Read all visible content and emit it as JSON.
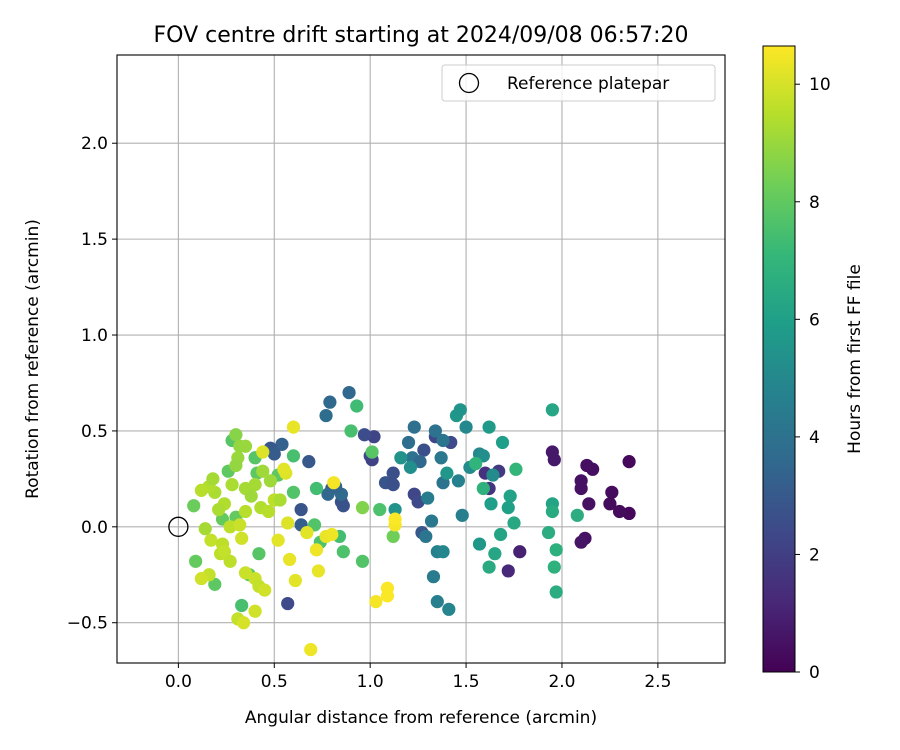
{
  "chart_data": {
    "type": "scatter",
    "title": "FOV centre drift starting at 2024/09/08 06:57:20",
    "xlabel": "Angular distance from reference (arcmin)",
    "ylabel": "Rotation from reference (arcmin)",
    "xlim": [
      -0.32,
      2.85
    ],
    "ylim": [
      -0.71,
      2.46
    ],
    "xticks": [
      0.0,
      0.5,
      1.0,
      1.5,
      2.0,
      2.5
    ],
    "xtick_labels": [
      "0.0",
      "0.5",
      "1.0",
      "1.5",
      "2.0",
      "2.5"
    ],
    "yticks": [
      -0.5,
      0.0,
      0.5,
      1.0,
      1.5,
      2.0
    ],
    "ytick_labels": [
      "−0.5",
      "0.0",
      "0.5",
      "1.0",
      "1.5",
      "2.0"
    ],
    "grid": true,
    "legend": {
      "placement": "upper right",
      "label": "Reference platepar"
    },
    "reference_point": {
      "x": 0.0,
      "y": 0.0
    },
    "colorbar": {
      "label": "Hours from first FF file",
      "range": [
        0,
        10.65
      ],
      "ticks": [
        0,
        2,
        4,
        6,
        8,
        10
      ],
      "tick_labels": [
        "0",
        "2",
        "4",
        "6",
        "8",
        "10"
      ],
      "colormap": "viridis"
    },
    "colors": {
      "grid": "#b0b0b0",
      "axes": "#000000",
      "viridis_stops": [
        "#440154",
        "#482878",
        "#3e4989",
        "#31688e",
        "#26828e",
        "#1f9e89",
        "#35b779",
        "#6ece58",
        "#b5de2b",
        "#fde725"
      ]
    },
    "points": [
      {
        "x": 2.35,
        "y": 0.34,
        "c": 0.2
      },
      {
        "x": 2.35,
        "y": 0.07,
        "c": 0.2
      },
      {
        "x": 2.3,
        "y": 0.08,
        "c": 0.3
      },
      {
        "x": 2.26,
        "y": 0.18,
        "c": 0.3
      },
      {
        "x": 2.25,
        "y": 0.12,
        "c": 0.3
      },
      {
        "x": 2.16,
        "y": 0.3,
        "c": 0.4
      },
      {
        "x": 2.13,
        "y": 0.32,
        "c": 0.4
      },
      {
        "x": 2.14,
        "y": 0.12,
        "c": 0.5
      },
      {
        "x": 2.1,
        "y": 0.24,
        "c": 0.5
      },
      {
        "x": 2.1,
        "y": 0.2,
        "c": 0.5
      },
      {
        "x": 2.12,
        "y": -0.06,
        "c": 0.5
      },
      {
        "x": 2.1,
        "y": -0.08,
        "c": 0.6
      },
      {
        "x": 1.95,
        "y": 0.39,
        "c": 0.7
      },
      {
        "x": 1.96,
        "y": 0.35,
        "c": 0.7
      },
      {
        "x": 1.78,
        "y": -0.13,
        "c": 1.0
      },
      {
        "x": 1.72,
        "y": -0.23,
        "c": 1.2
      },
      {
        "x": 1.6,
        "y": 0.28,
        "c": 1.5
      },
      {
        "x": 1.62,
        "y": 0.2,
        "c": 1.6
      },
      {
        "x": 1.67,
        "y": 0.29,
        "c": 1.8
      },
      {
        "x": 1.42,
        "y": 0.44,
        "c": 2.4
      },
      {
        "x": 1.34,
        "y": 0.47,
        "c": 2.3
      },
      {
        "x": 1.28,
        "y": 0.4,
        "c": 2.6
      },
      {
        "x": 1.02,
        "y": 0.47,
        "c": 2.2
      },
      {
        "x": 0.97,
        "y": 0.48,
        "c": 2.5
      },
      {
        "x": 1.0,
        "y": 0.37,
        "c": 2.4
      },
      {
        "x": 1.01,
        "y": 0.35,
        "c": 2.1
      },
      {
        "x": 1.12,
        "y": 0.28,
        "c": 2.6
      },
      {
        "x": 1.08,
        "y": 0.23,
        "c": 2.8
      },
      {
        "x": 1.12,
        "y": 0.22,
        "c": 2.6
      },
      {
        "x": 1.23,
        "y": 0.17,
        "c": 2.3
      },
      {
        "x": 1.25,
        "y": 0.13,
        "c": 2.4
      },
      {
        "x": 1.27,
        "y": -0.03,
        "c": 2.9
      },
      {
        "x": 0.85,
        "y": 0.13,
        "c": 2.6
      },
      {
        "x": 0.86,
        "y": 0.11,
        "c": 2.7
      },
      {
        "x": 0.8,
        "y": 0.2,
        "c": 2.9
      },
      {
        "x": 0.68,
        "y": 0.34,
        "c": 2.9
      },
      {
        "x": 0.64,
        "y": 0.09,
        "c": 2.8
      },
      {
        "x": 0.64,
        "y": 0.01,
        "c": 3.2
      },
      {
        "x": 0.57,
        "y": -0.4,
        "c": 2.4
      },
      {
        "x": 0.54,
        "y": 0.43,
        "c": 3.3
      },
      {
        "x": 0.48,
        "y": 0.41,
        "c": 2.9
      },
      {
        "x": 0.5,
        "y": 0.38,
        "c": 3.1
      },
      {
        "x": 0.89,
        "y": 0.7,
        "c": 3.6
      },
      {
        "x": 0.79,
        "y": 0.65,
        "c": 3.6
      },
      {
        "x": 0.77,
        "y": 0.58,
        "c": 3.8
      },
      {
        "x": 0.78,
        "y": 0.17,
        "c": 3.5
      },
      {
        "x": 0.85,
        "y": 0.17,
        "c": 3.7
      },
      {
        "x": 0.82,
        "y": 0.21,
        "c": 3.4
      },
      {
        "x": 1.2,
        "y": 0.44,
        "c": 3.8
      },
      {
        "x": 1.23,
        "y": 0.52,
        "c": 3.9
      },
      {
        "x": 1.22,
        "y": 0.36,
        "c": 4.0
      },
      {
        "x": 1.26,
        "y": 0.34,
        "c": 3.6
      },
      {
        "x": 1.34,
        "y": 0.5,
        "c": 4.0
      },
      {
        "x": 1.38,
        "y": 0.45,
        "c": 4.2
      },
      {
        "x": 1.37,
        "y": 0.36,
        "c": 4.3
      },
      {
        "x": 1.38,
        "y": 0.23,
        "c": 4.1
      },
      {
        "x": 1.3,
        "y": 0.15,
        "c": 4.4
      },
      {
        "x": 1.32,
        "y": 0.03,
        "c": 4.3
      },
      {
        "x": 1.29,
        "y": -0.05,
        "c": 4.2
      },
      {
        "x": 1.33,
        "y": -0.26,
        "c": 4.4
      },
      {
        "x": 1.35,
        "y": -0.39,
        "c": 4.6
      },
      {
        "x": 1.41,
        "y": -0.43,
        "c": 4.8
      },
      {
        "x": 1.35,
        "y": -0.13,
        "c": 4.7
      },
      {
        "x": 1.38,
        "y": -0.13,
        "c": 4.9
      },
      {
        "x": 1.48,
        "y": 0.06,
        "c": 4.6
      },
      {
        "x": 1.46,
        "y": 0.24,
        "c": 4.7
      },
      {
        "x": 1.5,
        "y": 0.52,
        "c": 5.0
      },
      {
        "x": 1.52,
        "y": 0.31,
        "c": 5.1
      },
      {
        "x": 1.57,
        "y": 0.38,
        "c": 5.0
      },
      {
        "x": 1.59,
        "y": 0.37,
        "c": 5.3
      },
      {
        "x": 1.64,
        "y": 0.27,
        "c": 5.1
      },
      {
        "x": 1.45,
        "y": 0.58,
        "c": 5.6
      },
      {
        "x": 1.47,
        "y": 0.61,
        "c": 5.5
      },
      {
        "x": 1.4,
        "y": 0.28,
        "c": 5.6
      },
      {
        "x": 1.21,
        "y": 0.31,
        "c": 5.3
      },
      {
        "x": 1.16,
        "y": 0.36,
        "c": 5.4
      },
      {
        "x": 1.13,
        "y": 0.09,
        "c": 5.4
      },
      {
        "x": 1.57,
        "y": -0.09,
        "c": 5.6
      },
      {
        "x": 1.62,
        "y": 0.52,
        "c": 5.8
      },
      {
        "x": 1.69,
        "y": 0.44,
        "c": 5.9
      },
      {
        "x": 1.63,
        "y": 0.12,
        "c": 5.9
      },
      {
        "x": 1.73,
        "y": 0.16,
        "c": 6.1
      },
      {
        "x": 1.72,
        "y": 0.1,
        "c": 6.0
      },
      {
        "x": 1.68,
        "y": -0.04,
        "c": 6.2
      },
      {
        "x": 1.65,
        "y": -0.14,
        "c": 6.3
      },
      {
        "x": 1.62,
        "y": -0.21,
        "c": 6.5
      },
      {
        "x": 1.75,
        "y": 0.02,
        "c": 6.4
      },
      {
        "x": 1.95,
        "y": 0.61,
        "c": 6.3
      },
      {
        "x": 1.95,
        "y": 0.12,
        "c": 6.2
      },
      {
        "x": 1.95,
        "y": 0.08,
        "c": 6.5
      },
      {
        "x": 1.93,
        "y": -0.03,
        "c": 6.6
      },
      {
        "x": 1.97,
        "y": -0.12,
        "c": 6.7
      },
      {
        "x": 1.96,
        "y": -0.21,
        "c": 6.8
      },
      {
        "x": 1.97,
        "y": -0.34,
        "c": 6.6
      },
      {
        "x": 2.08,
        "y": 0.06,
        "c": 6.6
      },
      {
        "x": 1.76,
        "y": 0.3,
        "c": 7.0
      },
      {
        "x": 1.59,
        "y": 0.2,
        "c": 6.8
      },
      {
        "x": 1.55,
        "y": 0.33,
        "c": 6.9
      },
      {
        "x": 0.93,
        "y": 0.63,
        "c": 7.3
      },
      {
        "x": 0.9,
        "y": 0.5,
        "c": 7.5
      },
      {
        "x": 1.01,
        "y": 0.39,
        "c": 7.8
      },
      {
        "x": 1.05,
        "y": 0.09,
        "c": 7.6
      },
      {
        "x": 0.96,
        "y": -0.18,
        "c": 7.7
      },
      {
        "x": 0.86,
        "y": -0.13,
        "c": 7.6
      },
      {
        "x": 0.84,
        "y": -0.05,
        "c": 7.4
      },
      {
        "x": 0.74,
        "y": -0.08,
        "c": 7.6
      },
      {
        "x": 0.71,
        "y": 0.01,
        "c": 7.7
      },
      {
        "x": 0.72,
        "y": 0.2,
        "c": 7.4
      },
      {
        "x": 0.6,
        "y": 0.37,
        "c": 7.5
      },
      {
        "x": 0.6,
        "y": 0.18,
        "c": 7.7
      },
      {
        "x": 0.52,
        "y": 0.27,
        "c": 7.9
      },
      {
        "x": 0.4,
        "y": 0.36,
        "c": 7.8
      },
      {
        "x": 0.41,
        "y": 0.28,
        "c": 7.9
      },
      {
        "x": 0.42,
        "y": -0.14,
        "c": 7.8
      },
      {
        "x": 0.33,
        "y": -0.41,
        "c": 7.5
      },
      {
        "x": 0.37,
        "y": -0.25,
        "c": 7.9
      },
      {
        "x": 0.26,
        "y": 0.29,
        "c": 8.0
      },
      {
        "x": 0.28,
        "y": 0.45,
        "c": 7.8
      },
      {
        "x": 0.19,
        "y": -0.3,
        "c": 7.9
      },
      {
        "x": 0.09,
        "y": -0.18,
        "c": 8.1
      },
      {
        "x": 0.08,
        "y": 0.11,
        "c": 8.2
      },
      {
        "x": 0.23,
        "y": 0.04,
        "c": 8.1
      },
      {
        "x": 0.3,
        "y": 0.05,
        "c": 8.1
      },
      {
        "x": 1.12,
        "y": -0.05,
        "c": 8.3
      },
      {
        "x": 0.96,
        "y": 0.1,
        "c": 8.6
      },
      {
        "x": 0.3,
        "y": 0.48,
        "c": 8.7
      },
      {
        "x": 0.32,
        "y": 0.42,
        "c": 8.9
      },
      {
        "x": 0.35,
        "y": 0.42,
        "c": 9.0
      },
      {
        "x": 0.31,
        "y": 0.36,
        "c": 9.0
      },
      {
        "x": 0.3,
        "y": 0.32,
        "c": 8.9
      },
      {
        "x": 0.44,
        "y": 0.29,
        "c": 9.1
      },
      {
        "x": 0.48,
        "y": 0.24,
        "c": 9.1
      },
      {
        "x": 0.4,
        "y": 0.22,
        "c": 9.2
      },
      {
        "x": 0.28,
        "y": 0.22,
        "c": 9.3
      },
      {
        "x": 0.35,
        "y": 0.2,
        "c": 9.2
      },
      {
        "x": 0.38,
        "y": 0.16,
        "c": 9.1
      },
      {
        "x": 0.19,
        "y": 0.18,
        "c": 9.3
      },
      {
        "x": 0.16,
        "y": 0.21,
        "c": 9.4
      },
      {
        "x": 0.18,
        "y": 0.25,
        "c": 9.2
      },
      {
        "x": 0.12,
        "y": 0.19,
        "c": 9.5
      },
      {
        "x": 0.24,
        "y": 0.12,
        "c": 9.4
      },
      {
        "x": 0.21,
        "y": 0.09,
        "c": 9.3
      },
      {
        "x": 0.35,
        "y": 0.08,
        "c": 9.5
      },
      {
        "x": 0.43,
        "y": 0.1,
        "c": 9.4
      },
      {
        "x": 0.5,
        "y": 0.14,
        "c": 9.6
      },
      {
        "x": 0.47,
        "y": 0.08,
        "c": 9.5
      },
      {
        "x": 0.53,
        "y": 0.14,
        "c": 9.3
      },
      {
        "x": 0.27,
        "y": 0.0,
        "c": 9.6
      },
      {
        "x": 0.14,
        "y": -0.01,
        "c": 9.2
      },
      {
        "x": 0.17,
        "y": -0.07,
        "c": 9.7
      },
      {
        "x": 0.23,
        "y": -0.09,
        "c": 9.6
      },
      {
        "x": 0.22,
        "y": -0.14,
        "c": 9.6
      },
      {
        "x": 0.24,
        "y": -0.13,
        "c": 9.7
      },
      {
        "x": 0.27,
        "y": -0.18,
        "c": 9.6
      },
      {
        "x": 0.16,
        "y": -0.25,
        "c": 9.7
      },
      {
        "x": 0.12,
        "y": -0.27,
        "c": 9.9
      },
      {
        "x": 0.35,
        "y": -0.24,
        "c": 9.8
      },
      {
        "x": 0.4,
        "y": -0.27,
        "c": 9.8
      },
      {
        "x": 0.42,
        "y": -0.31,
        "c": 9.7
      },
      {
        "x": 0.45,
        "y": -0.33,
        "c": 9.9
      },
      {
        "x": 0.4,
        "y": -0.44,
        "c": 9.9
      },
      {
        "x": 0.31,
        "y": -0.48,
        "c": 9.7
      },
      {
        "x": 0.34,
        "y": -0.5,
        "c": 10.0
      },
      {
        "x": 0.33,
        "y": -0.06,
        "c": 9.9
      },
      {
        "x": 0.32,
        "y": 0.01,
        "c": 9.8
      },
      {
        "x": 0.56,
        "y": 0.28,
        "c": 10.1
      },
      {
        "x": 0.55,
        "y": 0.3,
        "c": 10.2
      },
      {
        "x": 0.44,
        "y": 0.39,
        "c": 10.1
      },
      {
        "x": 0.6,
        "y": 0.52,
        "c": 10.3
      },
      {
        "x": 0.57,
        "y": 0.02,
        "c": 10.1
      },
      {
        "x": 0.52,
        "y": -0.07,
        "c": 10.2
      },
      {
        "x": 0.58,
        "y": -0.17,
        "c": 10.3
      },
      {
        "x": 0.61,
        "y": -0.28,
        "c": 10.2
      },
      {
        "x": 0.67,
        "y": -0.03,
        "c": 10.2
      },
      {
        "x": 0.72,
        "y": -0.12,
        "c": 10.4
      },
      {
        "x": 0.73,
        "y": -0.23,
        "c": 10.3
      },
      {
        "x": 0.77,
        "y": -0.05,
        "c": 10.3
      },
      {
        "x": 0.8,
        "y": -0.04,
        "c": 10.4
      },
      {
        "x": 0.81,
        "y": 0.23,
        "c": 10.5
      },
      {
        "x": 0.69,
        "y": -0.64,
        "c": 10.4
      },
      {
        "x": 1.03,
        "y": -0.39,
        "c": 10.5
      },
      {
        "x": 1.09,
        "y": -0.32,
        "c": 10.6
      },
      {
        "x": 1.09,
        "y": -0.36,
        "c": 10.6
      },
      {
        "x": 1.13,
        "y": 0.01,
        "c": 10.5
      },
      {
        "x": 1.13,
        "y": 0.04,
        "c": 10.6
      }
    ]
  }
}
